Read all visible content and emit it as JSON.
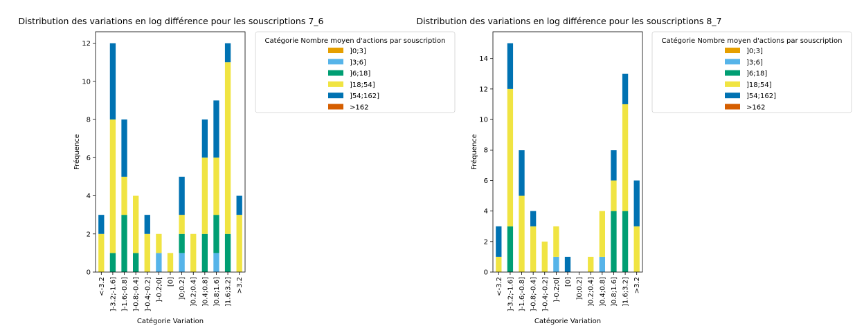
{
  "figure": {
    "legend_title": "Catégorie Nombre moyen d'actions par souscription",
    "legend_items": [
      {
        "label": "]0;3]",
        "color": "#E69F00"
      },
      {
        "label": "]3;6]",
        "color": "#56B4E9"
      },
      {
        "label": "]6;18]",
        "color": "#009E73"
      },
      {
        "label": "]18;54]",
        "color": "#F0E442"
      },
      {
        "label": "]54;162]",
        "color": "#0072B2"
      },
      {
        "label": ">162",
        "color": "#D55E00"
      }
    ]
  },
  "chart_data": [
    {
      "type": "bar",
      "stacked": true,
      "title": "Distribution des variations en log différence pour les souscriptions 7_6",
      "xlabel": "Catégorie Variation",
      "ylabel": "Fréquence",
      "ylim": [
        0,
        12.6
      ],
      "yticks": [
        0,
        2,
        4,
        6,
        8,
        10,
        12
      ],
      "legend_position": "right",
      "grid": false,
      "categories": [
        "<-3.2",
        "]-3.2;-1.6]",
        "]-1.6;-0.8]",
        "]-0.8;-0.4]",
        "]-0.4;-0.2]",
        "]-0.2;0[",
        "[0]",
        "]0;0.2]",
        "]0.2;0.4]",
        "]0.4;0.8]",
        "]0.8;1.6]",
        "]1.6;3.2]",
        ">3.2"
      ],
      "series": [
        {
          "name": "]0;3]",
          "values": [
            0,
            0,
            0,
            0,
            0,
            0,
            0,
            0,
            0,
            0,
            0,
            0,
            0
          ]
        },
        {
          "name": "]3;6]",
          "values": [
            0,
            0,
            0,
            0,
            0,
            1,
            0,
            1,
            0,
            0,
            1,
            0,
            0
          ]
        },
        {
          "name": "]6;18]",
          "values": [
            0,
            1,
            3,
            1,
            0,
            0,
            0,
            1,
            0,
            2,
            2,
            2,
            0
          ]
        },
        {
          "name": "]18;54]",
          "values": [
            2,
            7,
            2,
            3,
            2,
            1,
            1,
            1,
            2,
            4,
            3,
            9,
            3
          ]
        },
        {
          "name": "]54;162]",
          "values": [
            1,
            4,
            3,
            0,
            1,
            0,
            0,
            2,
            0,
            2,
            3,
            1,
            1
          ]
        },
        {
          "name": ">162",
          "values": [
            0,
            0,
            0,
            0,
            0,
            0,
            0,
            0,
            0,
            0,
            0,
            0,
            0
          ]
        }
      ]
    },
    {
      "type": "bar",
      "stacked": true,
      "title": "Distribution des variations en log différence pour les souscriptions 8_7",
      "xlabel": "Catégorie Variation",
      "ylabel": "Fréquence",
      "ylim": [
        0,
        15.75
      ],
      "yticks": [
        0,
        2,
        4,
        6,
        8,
        10,
        12,
        14
      ],
      "legend_position": "right",
      "grid": false,
      "categories": [
        "<-3.2",
        "]-3.2;-1.6]",
        "]-1.6;-0.8]",
        "]-0.8;-0.4]",
        "]-0.4;-0.2]",
        "]-0.2;0[",
        "[0]",
        "]0;0.2]",
        "]0.2;0.4]",
        "]0.4;0.8]",
        "]0.8;1.6]",
        "]1.6;3.2]",
        ">3.2"
      ],
      "series": [
        {
          "name": "]0;3]",
          "values": [
            0,
            0,
            0,
            0,
            0,
            0,
            0,
            0,
            0,
            0,
            0,
            0,
            0
          ]
        },
        {
          "name": "]3;6]",
          "values": [
            0,
            0,
            0,
            0,
            0,
            1,
            0,
            0,
            0,
            1,
            0,
            0,
            0
          ]
        },
        {
          "name": "]6;18]",
          "values": [
            0,
            3,
            0,
            0,
            0,
            0,
            0,
            0,
            0,
            0,
            4,
            4,
            0
          ]
        },
        {
          "name": "]18;54]",
          "values": [
            1,
            9,
            5,
            3,
            2,
            2,
            0,
            0,
            1,
            3,
            2,
            7,
            3
          ]
        },
        {
          "name": "]54;162]",
          "values": [
            2,
            3,
            3,
            1,
            0,
            0,
            1,
            0,
            0,
            0,
            2,
            2,
            3
          ]
        },
        {
          "name": ">162",
          "values": [
            0,
            0,
            0,
            0,
            0,
            0,
            0,
            0,
            0,
            0,
            0,
            0,
            0
          ]
        }
      ]
    }
  ]
}
